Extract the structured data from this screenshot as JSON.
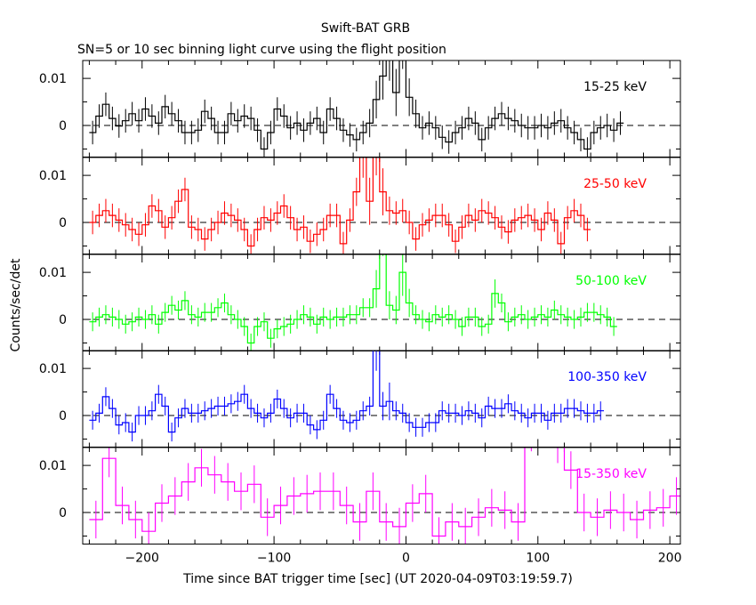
{
  "figure": {
    "title": "Swift-BAT GRB",
    "subtitle": "SN=5 or 10 sec binning light curve using the flight position",
    "ylabel": "Counts/sec/det",
    "xlabel": "Time since BAT trigger time [sec] (UT 2020-04-09T03:19:59.7)"
  },
  "chart_data": [
    {
      "type": "line",
      "label": "15-25 keV",
      "color": "#000000",
      "xlim": [
        -245,
        208
      ],
      "ylim": [
        -0.0067,
        0.0138
      ],
      "yticks": [
        0,
        0.01
      ],
      "ytick_labels": [
        "0",
        "0.01"
      ],
      "xticks": [
        -200,
        -100,
        0,
        100,
        200
      ],
      "bin_width": 5,
      "bin_start": -240,
      "values": [
        -0.0015,
        0.002,
        0.0045,
        0.0015,
        -0.0001,
        0.001,
        0.0025,
        0.001,
        0.0035,
        0.002,
        0.0005,
        0.004,
        0.0025,
        0.001,
        -0.0015,
        -0.0015,
        -0.001,
        0.003,
        0.0015,
        -0.0015,
        -0.0015,
        0.0025,
        0.001,
        0.002,
        0.0015,
        -0.001,
        -0.005,
        -0.0015,
        0.0035,
        0.002,
        -0.0005,
        0.0005,
        -0.001,
        0.0005,
        0.0015,
        -0.0015,
        0.0035,
        0.0015,
        -0.001,
        -0.002,
        -0.003,
        -0.0015,
        0.0005,
        0.0055,
        0.0105,
        0.0155,
        0.007,
        0.018,
        0.006,
        0.0025,
        -0.0005,
        0.0005,
        -0.0005,
        -0.0025,
        -0.0035,
        -0.0015,
        -0.0005,
        0.0015,
        0.0005,
        -0.003,
        -0.0005,
        0.0015,
        0.0025,
        0.0015,
        0.001,
        0,
        -0.0005,
        -0.0005,
        0,
        -0.0005,
        0.0005,
        0.001,
        -0.0005,
        -0.0015,
        -0.003,
        -0.005,
        -0.0015,
        -0.0005,
        0,
        -0.001,
        0.0005
      ],
      "errors": [
        0.0025,
        0.0025,
        0.0025,
        0.0025,
        0.0025,
        0.0025,
        0.0025,
        0.0025,
        0.0025,
        0.0025,
        0.0025,
        0.0025,
        0.0025,
        0.0025,
        0.0025,
        0.0025,
        0.0025,
        0.0025,
        0.0025,
        0.0025,
        0.0025,
        0.0025,
        0.0025,
        0.0025,
        0.0025,
        0.0025,
        0.0025,
        0.0025,
        0.0025,
        0.0025,
        0.0025,
        0.0025,
        0.0025,
        0.0025,
        0.0025,
        0.0025,
        0.0025,
        0.0025,
        0.0025,
        0.0025,
        0.0025,
        0.0025,
        0.003,
        0.004,
        0.005,
        0.006,
        0.005,
        0.006,
        0.004,
        0.003,
        0.0025,
        0.0025,
        0.0025,
        0.0025,
        0.0025,
        0.0025,
        0.0025,
        0.0025,
        0.0025,
        0.0025,
        0.0025,
        0.0025,
        0.0025,
        0.0025,
        0.0025,
        0.0025,
        0.0025,
        0.0025,
        0.0025,
        0.0025,
        0.0025,
        0.0025,
        0.0025,
        0.0025,
        0.0025,
        0.0025,
        0.0025,
        0.0025,
        0.0025,
        0.0025,
        0.0025
      ]
    },
    {
      "type": "line",
      "label": "25-50 keV",
      "color": "#ff0000",
      "xlim": [
        -245,
        208
      ],
      "ylim": [
        -0.0067,
        0.0138
      ],
      "yticks": [
        0,
        0.01
      ],
      "ytick_labels": [
        "0",
        "0.01"
      ],
      "xticks": [
        -200,
        -100,
        0,
        100,
        200
      ],
      "bin_width": 5,
      "bin_start": -240,
      "values": [
        0,
        0.0015,
        0.0025,
        0.0015,
        0.0005,
        -0.0005,
        -0.0015,
        -0.0025,
        -0.0005,
        0.0035,
        0.0025,
        -0.001,
        0.001,
        0.0045,
        0.007,
        -0.001,
        -0.0015,
        -0.0035,
        -0.0015,
        0,
        0.002,
        0.0015,
        0.0005,
        -0.0015,
        -0.005,
        -0.0015,
        0.001,
        0.0005,
        0.002,
        0.0035,
        0.001,
        -0.0015,
        -0.001,
        -0.004,
        -0.0025,
        -0.0015,
        0.0015,
        0.0015,
        -0.0045,
        0.0005,
        0.0065,
        0.0145,
        0.0045,
        0.016,
        0.0065,
        0.0025,
        0.002,
        0.0025,
        0,
        -0.0035,
        -0.0005,
        0.0005,
        0.0015,
        0.0015,
        -0.0005,
        -0.004,
        -0.001,
        0.0015,
        0.0005,
        0.0025,
        0.002,
        0.001,
        -0.001,
        -0.002,
        0.0005,
        0.001,
        0.0015,
        0.0005,
        -0.0015,
        0.002,
        0.0005,
        -0.0045,
        0.001,
        0.0025,
        0.0015,
        -0.0015
      ],
      "errors": [
        0.0025,
        0.0025,
        0.0025,
        0.0025,
        0.0025,
        0.0025,
        0.0025,
        0.0025,
        0.0025,
        0.0025,
        0.0025,
        0.0025,
        0.0025,
        0.0025,
        0.0025,
        0.0025,
        0.0025,
        0.0025,
        0.0025,
        0.0025,
        0.0025,
        0.0025,
        0.0025,
        0.0025,
        0.0025,
        0.0025,
        0.0025,
        0.0025,
        0.0025,
        0.0025,
        0.0025,
        0.0025,
        0.0025,
        0.0025,
        0.0025,
        0.0025,
        0.0025,
        0.0025,
        0.0025,
        0.0025,
        0.003,
        0.005,
        0.005,
        0.006,
        0.005,
        0.003,
        0.0025,
        0.0025,
        0.0025,
        0.0025,
        0.0025,
        0.0025,
        0.0025,
        0.0025,
        0.0025,
        0.0025,
        0.0025,
        0.0025,
        0.0025,
        0.0025,
        0.0025,
        0.0025,
        0.0025,
        0.0025,
        0.0025,
        0.0025,
        0.0025,
        0.0025,
        0.0025,
        0.0025,
        0.0025,
        0.0025,
        0.0025,
        0.0025,
        0.0025,
        0.0025
      ],
      "bin_widths_note": "mixed"
    },
    {
      "type": "line",
      "label": "50-100 keV",
      "color": "#00ff00",
      "xlim": [
        -245,
        208
      ],
      "ylim": [
        -0.0067,
        0.0138
      ],
      "yticks": [
        0,
        0.01
      ],
      "ytick_labels": [
        "0",
        "0.01"
      ],
      "xticks": [
        -200,
        -100,
        0,
        100,
        200
      ],
      "bin_width": 5,
      "bin_start": -240,
      "values": [
        -0.0005,
        0.0005,
        0.001,
        0.0005,
        0,
        -0.001,
        -0.0005,
        0.0005,
        0,
        0.001,
        -0.001,
        0.0015,
        0.003,
        0.002,
        0.004,
        0.001,
        0.0005,
        0.0015,
        0.0015,
        0.0025,
        0.0035,
        0.001,
        0,
        -0.0015,
        -0.005,
        -0.0015,
        -0.0005,
        -0.004,
        -0.002,
        -0.0015,
        -0.001,
        0,
        0.001,
        0.0005,
        -0.001,
        0.0005,
        0,
        0.0005,
        0.0005,
        0.001,
        0.001,
        0.0025,
        0.0025,
        0.0065,
        0.0195,
        0.003,
        0.002,
        0.01,
        0.0035,
        0.001,
        0,
        -0.0005,
        0.001,
        0.0005,
        0.001,
        0,
        -0.0015,
        0.0005,
        0.0005,
        -0.0015,
        -0.001,
        0.0055,
        0.0035,
        -0.0005,
        0.0005,
        0.001,
        0,
        0.0005,
        0.001,
        0.0005,
        0.002,
        0.001,
        0.0005,
        0,
        0.0005,
        0.0015,
        0.0015,
        0.001,
        0.0005,
        -0.0015
      ],
      "errors": [
        0.002,
        0.002,
        0.002,
        0.002,
        0.002,
        0.002,
        0.002,
        0.002,
        0.002,
        0.002,
        0.002,
        0.002,
        0.002,
        0.002,
        0.002,
        0.002,
        0.002,
        0.002,
        0.002,
        0.002,
        0.002,
        0.002,
        0.002,
        0.002,
        0.002,
        0.002,
        0.002,
        0.002,
        0.002,
        0.002,
        0.002,
        0.002,
        0.002,
        0.002,
        0.002,
        0.002,
        0.002,
        0.002,
        0.002,
        0.002,
        0.002,
        0.002,
        0.002,
        0.004,
        0.006,
        0.003,
        0.003,
        0.005,
        0.003,
        0.002,
        0.002,
        0.002,
        0.002,
        0.002,
        0.002,
        0.002,
        0.002,
        0.002,
        0.002,
        0.002,
        0.002,
        0.003,
        0.002,
        0.002,
        0.002,
        0.002,
        0.002,
        0.002,
        0.002,
        0.002,
        0.002,
        0.002,
        0.002,
        0.002,
        0.002,
        0.002,
        0.002,
        0.002,
        0.002,
        0.002
      ]
    },
    {
      "type": "line",
      "label": "100-350 keV",
      "color": "#0000ff",
      "xlim": [
        -245,
        208
      ],
      "ylim": [
        -0.0067,
        0.0138
      ],
      "yticks": [
        0,
        0.01
      ],
      "ytick_labels": [
        "0",
        "0.01"
      ],
      "xticks": [
        -200,
        -100,
        0,
        100,
        200
      ],
      "bin_width": 5,
      "bin_start": -240,
      "values": [
        -0.001,
        0.0005,
        0.004,
        0.0015,
        -0.002,
        -0.0015,
        -0.0035,
        0,
        0,
        0.001,
        0.0045,
        0.002,
        -0.0035,
        -0.0005,
        0.0015,
        0.0005,
        0.0005,
        0.001,
        0.0015,
        0.002,
        0.002,
        0.0025,
        0.003,
        0.0045,
        0.0015,
        0.0005,
        -0.0005,
        0.0005,
        0.0035,
        0.0015,
        -0.0005,
        0.0005,
        0.0005,
        -0.002,
        -0.003,
        -0.001,
        0.0045,
        0.0015,
        -0.001,
        -0.0015,
        -0.001,
        0.001,
        0.002,
        0.0155,
        0.002,
        0.003,
        0.001,
        0.0005,
        -0.0015,
        -0.0025,
        -0.0025,
        -0.0015,
        -0.0015,
        0.001,
        0.0005,
        0.0005,
        0,
        0.001,
        0.0005,
        -0.0005,
        0.002,
        0.0015,
        0.0015,
        0.0025,
        0.001,
        0.0005,
        -0.0005,
        0.0005,
        0.0005,
        -0.001,
        0.0005,
        0.0005,
        0.0015,
        0.0015,
        0.001,
        0.0005,
        0.0005,
        0.001
      ],
      "errors": [
        0.002,
        0.002,
        0.002,
        0.002,
        0.002,
        0.002,
        0.002,
        0.002,
        0.002,
        0.002,
        0.002,
        0.002,
        0.002,
        0.002,
        0.002,
        0.002,
        0.002,
        0.002,
        0.002,
        0.002,
        0.002,
        0.002,
        0.002,
        0.002,
        0.002,
        0.002,
        0.002,
        0.002,
        0.002,
        0.002,
        0.002,
        0.002,
        0.002,
        0.002,
        0.002,
        0.002,
        0.002,
        0.002,
        0.002,
        0.002,
        0.002,
        0.002,
        0.002,
        0.006,
        0.003,
        0.004,
        0.002,
        0.002,
        0.002,
        0.002,
        0.002,
        0.002,
        0.002,
        0.002,
        0.002,
        0.002,
        0.002,
        0.002,
        0.002,
        0.002,
        0.002,
        0.002,
        0.002,
        0.002,
        0.002,
        0.002,
        0.002,
        0.002,
        0.002,
        0.002,
        0.002,
        0.002,
        0.002,
        0.002,
        0.002,
        0.002,
        0.002,
        0.002
      ]
    },
    {
      "type": "line",
      "label": "15-350 keV",
      "color": "#ff00ff",
      "xlim": [
        -245,
        208
      ],
      "ylim": [
        -0.0067,
        0.0138
      ],
      "yticks": [
        0,
        0.01
      ],
      "ytick_labels": [
        "0",
        "0.01"
      ],
      "xticks": [
        -200,
        -100,
        0,
        100,
        200
      ],
      "bin_width": 10,
      "bin_start": -240,
      "values": [
        -0.0015,
        0.0115,
        0.0015,
        -0.0015,
        -0.004,
        0.002,
        0.0035,
        0.0065,
        0.0095,
        0.008,
        0.0065,
        0.0045,
        0.006,
        -0.001,
        0.0015,
        0.0035,
        0.004,
        0.0045,
        0.0045,
        0.0015,
        -0.002,
        0.0045,
        -0.002,
        -0.003,
        0.002,
        0.004,
        -0.005,
        -0.002,
        -0.003,
        -0.001,
        0.001,
        0.0005,
        -0.002,
        0.018,
        0.0195,
        0.0155,
        0.009,
        0.0,
        -0.001,
        0.0005,
        0.0,
        -0.0015,
        0.0005,
        0.001,
        0.0035,
        0.0005,
        -0.001,
        0.004,
        0.002,
        0.003,
        -0.0005,
        -0.0005,
        -0.002,
        0.0005,
        0.004,
        0.002
      ],
      "errors": [
        0.004,
        0.004,
        0.004,
        0.004,
        0.004,
        0.004,
        0.004,
        0.004,
        0.004,
        0.004,
        0.004,
        0.004,
        0.004,
        0.004,
        0.004,
        0.004,
        0.004,
        0.004,
        0.004,
        0.004,
        0.004,
        0.004,
        0.004,
        0.004,
        0.004,
        0.004,
        0.004,
        0.004,
        0.004,
        0.004,
        0.004,
        0.004,
        0.004,
        0.005,
        0.005,
        0.005,
        0.004,
        0.004,
        0.004,
        0.004,
        0.004,
        0.004,
        0.004,
        0.004,
        0.004,
        0.004,
        0.004,
        0.004,
        0.004,
        0.004,
        0.004,
        0.004,
        0.004,
        0.004,
        0.004,
        0.004
      ]
    }
  ]
}
